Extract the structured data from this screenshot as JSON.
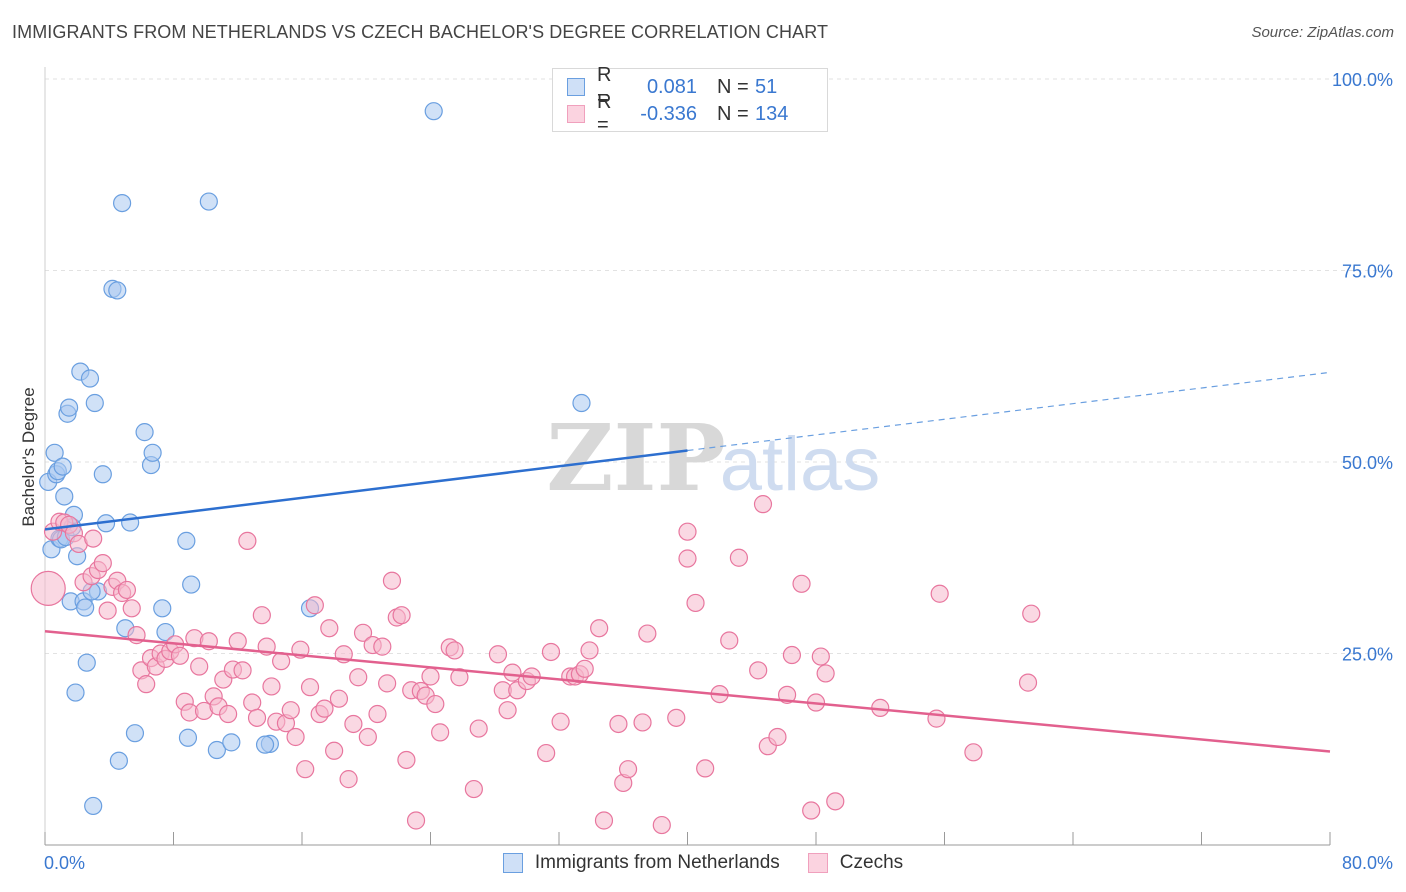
{
  "header": {
    "title": "IMMIGRANTS FROM NETHERLANDS VS CZECH BACHELOR'S DEGREE CORRELATION CHART",
    "source": "Source: ZipAtlas.com"
  },
  "legend_stats": [
    {
      "r_label": "R =",
      "r_value": "0.081",
      "n_label": "N =",
      "n_value": "51",
      "color": "#6a9fe0"
    },
    {
      "r_label": "R =",
      "r_value": "-0.336",
      "n_label": "N =",
      "n_value": "134",
      "color": "#f0a0bd"
    }
  ],
  "watermark": {
    "part1": "ZIP",
    "part2": "atlas"
  },
  "chart_data": {
    "type": "scatter",
    "title": "IMMIGRANTS FROM NETHERLANDS VS CZECH BACHELOR'S DEGREE CORRELATION CHART",
    "ylabel": "Bachelor's Degree",
    "xlabel": "",
    "xlim": [
      0,
      80
    ],
    "ylim": [
      0,
      100
    ],
    "x_tick_labels": [
      "0.0%",
      "80.0%"
    ],
    "y_tick_labels": [
      "100.0%",
      "75.0%",
      "50.0%",
      "25.0%"
    ],
    "y_ticks": [
      100,
      75,
      50,
      25
    ],
    "grid": true,
    "legend_position": "bottom",
    "series": [
      {
        "name": "Immigrants from Netherlands",
        "color": "#6a9fe0",
        "fill": "#aac8f0",
        "trend": {
          "x0": 0,
          "y0": 41.2,
          "x1": 40,
          "y1": 51.5,
          "dash_to": 80,
          "dash_y": 61.7
        },
        "points": [
          [
            0.2,
            47.4
          ],
          [
            0.4,
            38.6
          ],
          [
            0.6,
            51.2
          ],
          [
            0.7,
            48.4
          ],
          [
            0.8,
            48.8
          ],
          [
            0.9,
            40.0
          ],
          [
            1.0,
            39.9
          ],
          [
            1.1,
            49.4
          ],
          [
            1.2,
            45.5
          ],
          [
            1.3,
            40.2
          ],
          [
            1.4,
            56.3
          ],
          [
            1.5,
            57.1
          ],
          [
            1.6,
            31.8
          ],
          [
            1.7,
            41.5
          ],
          [
            1.8,
            43.1
          ],
          [
            1.9,
            19.9
          ],
          [
            2.0,
            37.7
          ],
          [
            2.2,
            61.8
          ],
          [
            2.4,
            31.8
          ],
          [
            2.5,
            31.0
          ],
          [
            2.6,
            23.8
          ],
          [
            2.8,
            60.9
          ],
          [
            3.0,
            5.1
          ],
          [
            3.1,
            57.7
          ],
          [
            3.3,
            33.1
          ],
          [
            3.6,
            48.4
          ],
          [
            3.8,
            42.0
          ],
          [
            4.2,
            72.6
          ],
          [
            4.5,
            72.4
          ],
          [
            4.8,
            83.8
          ],
          [
            4.6,
            11.0
          ],
          [
            5.0,
            28.3
          ],
          [
            5.3,
            42.1
          ],
          [
            5.6,
            14.6
          ],
          [
            6.2,
            53.9
          ],
          [
            6.6,
            49.6
          ],
          [
            6.7,
            51.2
          ],
          [
            7.3,
            30.9
          ],
          [
            7.5,
            27.8
          ],
          [
            8.8,
            39.7
          ],
          [
            8.9,
            14.0
          ],
          [
            9.1,
            34.0
          ],
          [
            10.2,
            84.0
          ],
          [
            10.7,
            12.4
          ],
          [
            11.6,
            13.4
          ],
          [
            14.0,
            13.2
          ],
          [
            16.5,
            30.9
          ],
          [
            24.2,
            95.8
          ],
          [
            33.4,
            57.7
          ],
          [
            13.7,
            13.1
          ],
          [
            2.9,
            33.1
          ]
        ]
      },
      {
        "name": "Czechs",
        "color": "#e8769e",
        "fill": "#f5b8cc",
        "trend": {
          "x0": 0,
          "y0": 27.9,
          "x1": 80,
          "y1": 12.2
        },
        "points": [
          [
            0.2,
            33.5
          ],
          [
            0.5,
            40.9
          ],
          [
            0.9,
            42.2
          ],
          [
            1.2,
            42.1
          ],
          [
            1.5,
            41.8
          ],
          [
            1.8,
            40.7
          ],
          [
            2.1,
            39.3
          ],
          [
            2.4,
            34.3
          ],
          [
            2.9,
            35.1
          ],
          [
            3.0,
            40.0
          ],
          [
            3.3,
            35.9
          ],
          [
            3.6,
            36.8
          ],
          [
            3.9,
            30.6
          ],
          [
            4.2,
            33.7
          ],
          [
            4.5,
            34.5
          ],
          [
            4.8,
            32.9
          ],
          [
            5.1,
            33.3
          ],
          [
            5.4,
            30.9
          ],
          [
            5.7,
            27.4
          ],
          [
            6.0,
            22.8
          ],
          [
            6.3,
            21.0
          ],
          [
            6.6,
            24.4
          ],
          [
            6.9,
            23.3
          ],
          [
            7.2,
            25.0
          ],
          [
            7.5,
            24.3
          ],
          [
            7.8,
            25.3
          ],
          [
            8.1,
            26.2
          ],
          [
            8.4,
            24.7
          ],
          [
            8.7,
            18.7
          ],
          [
            9.0,
            17.3
          ],
          [
            9.3,
            27.0
          ],
          [
            9.6,
            23.3
          ],
          [
            9.9,
            17.5
          ],
          [
            10.2,
            26.6
          ],
          [
            10.5,
            19.4
          ],
          [
            10.8,
            18.1
          ],
          [
            11.1,
            21.6
          ],
          [
            11.4,
            17.1
          ],
          [
            11.7,
            22.9
          ],
          [
            12.0,
            26.6
          ],
          [
            12.3,
            22.8
          ],
          [
            12.6,
            39.7
          ],
          [
            12.9,
            18.6
          ],
          [
            13.2,
            16.6
          ],
          [
            13.5,
            30.0
          ],
          [
            13.8,
            25.9
          ],
          [
            14.1,
            20.7
          ],
          [
            14.4,
            16.1
          ],
          [
            14.7,
            24.0
          ],
          [
            15.0,
            15.9
          ],
          [
            15.3,
            17.6
          ],
          [
            15.6,
            14.1
          ],
          [
            15.9,
            25.5
          ],
          [
            16.2,
            9.9
          ],
          [
            16.5,
            20.6
          ],
          [
            16.8,
            31.3
          ],
          [
            17.1,
            17.1
          ],
          [
            17.4,
            17.8
          ],
          [
            17.7,
            28.3
          ],
          [
            18.0,
            12.3
          ],
          [
            18.3,
            19.1
          ],
          [
            18.6,
            24.9
          ],
          [
            18.9,
            8.6
          ],
          [
            19.2,
            15.8
          ],
          [
            19.5,
            21.9
          ],
          [
            19.8,
            27.7
          ],
          [
            20.1,
            14.1
          ],
          [
            20.4,
            26.1
          ],
          [
            20.7,
            17.1
          ],
          [
            21.0,
            25.9
          ],
          [
            21.3,
            21.1
          ],
          [
            21.6,
            34.5
          ],
          [
            21.9,
            29.7
          ],
          [
            22.2,
            30.0
          ],
          [
            22.5,
            11.1
          ],
          [
            22.8,
            20.2
          ],
          [
            23.1,
            3.2
          ],
          [
            23.4,
            20.1
          ],
          [
            23.7,
            19.5
          ],
          [
            24.0,
            22.0
          ],
          [
            24.3,
            18.4
          ],
          [
            24.6,
            14.7
          ],
          [
            25.2,
            25.8
          ],
          [
            25.5,
            25.4
          ],
          [
            25.8,
            21.9
          ],
          [
            26.7,
            7.3
          ],
          [
            27.0,
            15.2
          ],
          [
            28.2,
            24.9
          ],
          [
            28.5,
            20.2
          ],
          [
            28.8,
            17.6
          ],
          [
            29.1,
            22.5
          ],
          [
            29.4,
            20.2
          ],
          [
            30.0,
            21.4
          ],
          [
            30.3,
            22.0
          ],
          [
            31.2,
            12.0
          ],
          [
            31.5,
            25.2
          ],
          [
            32.1,
            16.1
          ],
          [
            32.7,
            22.0
          ],
          [
            33.0,
            22.0
          ],
          [
            33.3,
            22.3
          ],
          [
            33.6,
            23.0
          ],
          [
            33.9,
            25.4
          ],
          [
            34.5,
            28.3
          ],
          [
            34.8,
            3.2
          ],
          [
            35.7,
            15.8
          ],
          [
            36.0,
            8.1
          ],
          [
            36.3,
            9.9
          ],
          [
            37.2,
            16.0
          ],
          [
            37.5,
            27.6
          ],
          [
            38.4,
            2.6
          ],
          [
            39.3,
            16.6
          ],
          [
            40.0,
            40.9
          ],
          [
            40.0,
            37.4
          ],
          [
            40.5,
            31.6
          ],
          [
            41.1,
            10.0
          ],
          [
            42.0,
            19.7
          ],
          [
            42.6,
            26.7
          ],
          [
            43.2,
            37.5
          ],
          [
            44.4,
            22.8
          ],
          [
            44.7,
            44.5
          ],
          [
            45.0,
            12.9
          ],
          [
            45.6,
            14.1
          ],
          [
            46.2,
            19.6
          ],
          [
            46.5,
            24.8
          ],
          [
            47.1,
            34.1
          ],
          [
            47.7,
            4.5
          ],
          [
            48.0,
            18.6
          ],
          [
            48.3,
            24.6
          ],
          [
            48.6,
            22.4
          ],
          [
            49.2,
            5.7
          ],
          [
            52.0,
            17.9
          ],
          [
            55.5,
            16.5
          ],
          [
            55.7,
            32.8
          ],
          [
            57.8,
            12.1
          ],
          [
            61.2,
            21.2
          ],
          [
            61.4,
            30.2
          ]
        ]
      }
    ]
  },
  "bottom_legend": [
    {
      "label": "Immigrants from Netherlands",
      "color": "#6a9fe0",
      "fill": "#aac8f0"
    },
    {
      "label": "Czechs",
      "color": "#e8769e",
      "fill": "#f5b8cc"
    }
  ]
}
